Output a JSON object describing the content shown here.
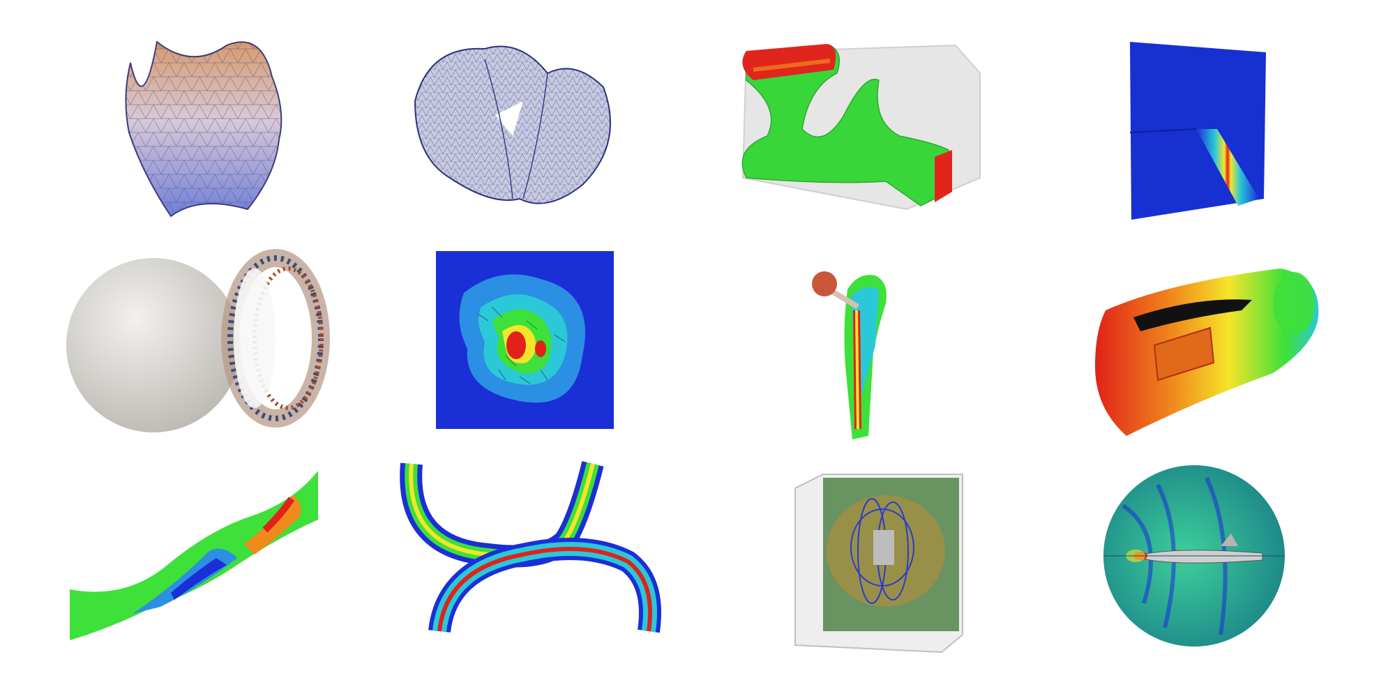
{
  "gallery": {
    "rows": 3,
    "columns": 4,
    "background": "#ffffff",
    "tiles": [
      {
        "id": "saddle-surface-mesh",
        "description_icon": "wavy-surface-triangle-mesh"
      },
      {
        "id": "folded-shell-mesh",
        "description_icon": "folded-shell-triangle-mesh"
      },
      {
        "id": "topology-optimized-bracket",
        "description_icon": "green-bracket-in-box"
      },
      {
        "id": "crack-plate-field",
        "description_icon": "blue-plate-with-red-band"
      },
      {
        "id": "sphere-with-vortex-ring",
        "description_icon": "sphere-and-arrow-ring"
      },
      {
        "id": "vector-field-contour",
        "description_icon": "contour-square-with-arrows"
      },
      {
        "id": "femur-implant",
        "description_icon": "bone-with-stem-implant"
      },
      {
        "id": "cylinder-stress-field",
        "description_icon": "slotted-cylinder-heatmap"
      },
      {
        "id": "twisted-beam",
        "description_icon": "twisted-strip-heatmap"
      },
      {
        "id": "curved-channels",
        "description_icon": "two-crossing-curved-bands"
      },
      {
        "id": "magnetic-field-box",
        "description_icon": "box-with-field-lines"
      },
      {
        "id": "submarine-wake",
        "description_icon": "disc-with-submarine"
      }
    ]
  },
  "palette": {
    "blue": "#1a2fd6",
    "cyan": "#2bc8d8",
    "green": "#3ee03a",
    "yellow": "#f5e52a",
    "orange": "#f08a1c",
    "red": "#e0221a",
    "mesh_gray": "#c9ccdf",
    "sphere_gray": "#d8d6d2",
    "bone": "#f1e6cf"
  }
}
